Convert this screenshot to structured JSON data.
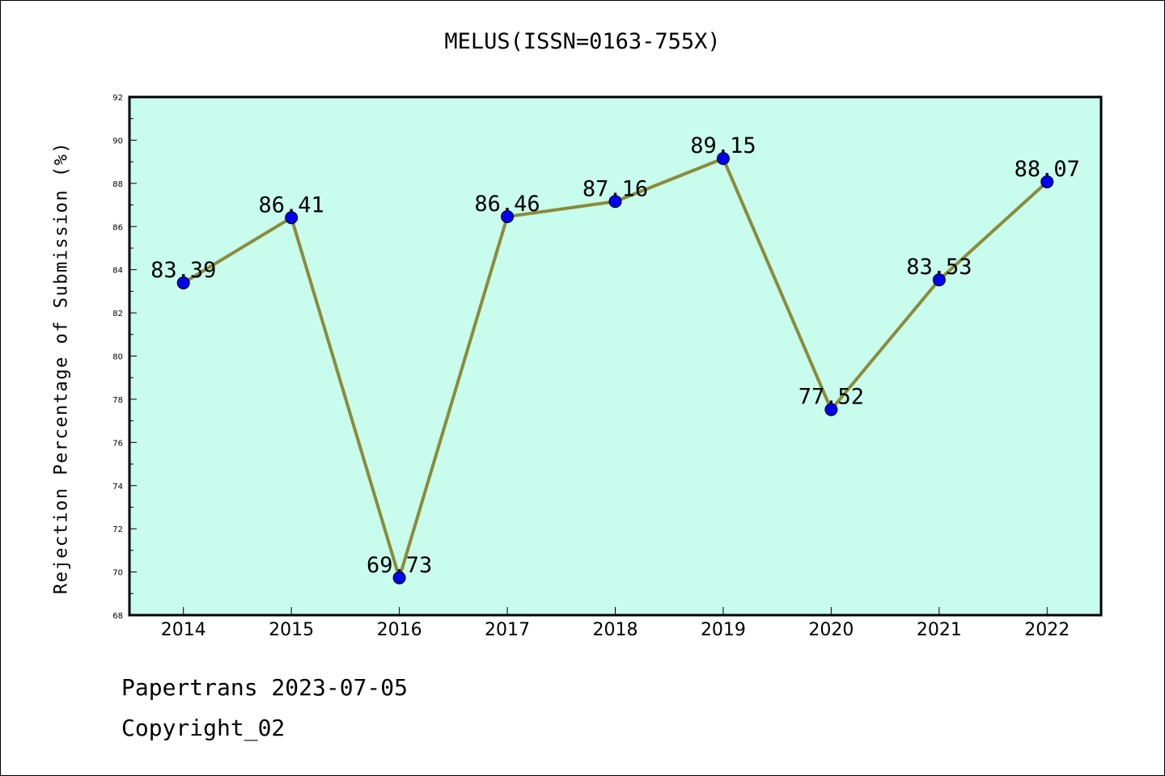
{
  "chart_data": {
    "type": "line",
    "title": "MELUS(ISSN=0163-755X)",
    "xlabel": "",
    "ylabel": "Rejection Percentage of Submission (%)",
    "categories": [
      "2014",
      "2015",
      "2016",
      "2017",
      "2018",
      "2019",
      "2020",
      "2021",
      "2022"
    ],
    "series": [
      {
        "values": [
          83.39,
          86.41,
          69.73,
          86.46,
          87.16,
          89.15,
          77.52,
          83.53,
          88.07
        ],
        "data_labels": [
          "83.39",
          "86.41",
          "69.73",
          "86.46",
          "87.16",
          "89.15",
          "77.52",
          "83.53",
          "88.07"
        ],
        "line_color": "#8b8b3a",
        "marker_color": "#0000ee"
      }
    ],
    "ylim": [
      68,
      92
    ],
    "yticks": [
      "68",
      "70",
      "72",
      "74",
      "76",
      "78",
      "80",
      "82",
      "84",
      "86",
      "88",
      "90",
      "92"
    ],
    "grid": false,
    "legend": "none",
    "plot_background": "#c8fcec"
  },
  "footer": {
    "line1": "Papertrans 2023-07-05",
    "line2": "Copyright_02"
  }
}
